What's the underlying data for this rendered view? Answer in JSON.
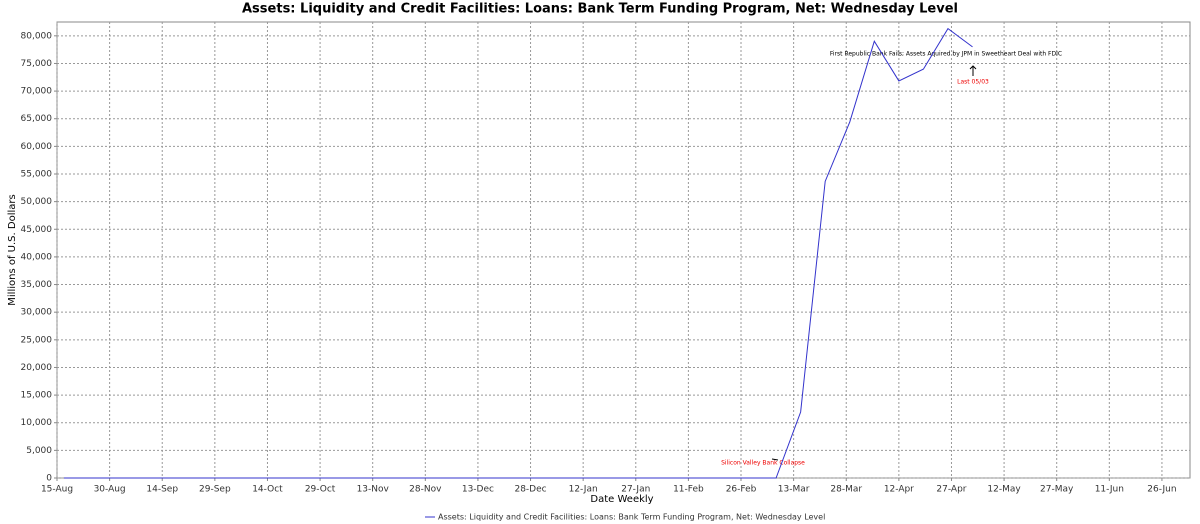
{
  "chart_data": {
    "type": "line",
    "title": "Assets: Liquidity and Credit Facilities: Loans: Bank Term Funding Program, Net: Wednesday Level",
    "x_label": "Date Weekly",
    "y_label": "Millions of U.S. Dollars",
    "x": [
      2,
      9,
      16,
      23,
      30,
      37,
      44,
      51,
      58,
      65,
      72,
      79,
      86,
      93,
      100,
      107,
      114,
      121,
      128,
      135,
      142,
      149,
      156,
      163,
      170,
      177,
      184,
      191,
      198,
      205,
      212,
      219,
      226,
      233,
      240,
      247,
      254,
      261
    ],
    "series": [
      {
        "name": "Assets: Liquidity and Credit Facilities: Loans: Bank Term Funding Program, Net: Wednesday Level",
        "color": "#3333cc",
        "values": [
          0,
          0,
          0,
          0,
          0,
          0,
          0,
          0,
          0,
          0,
          0,
          0,
          0,
          0,
          0,
          0,
          0,
          0,
          0,
          0,
          0,
          0,
          0,
          0,
          0,
          0,
          0,
          0,
          0,
          0,
          11943,
          53669,
          64403,
          79020,
          71837,
          73982,
          81305,
          78000
        ]
      }
    ],
    "xlim": [
      0,
      323
    ],
    "xticks": [
      {
        "value": 0,
        "label": "15-Aug"
      },
      {
        "value": 15,
        "label": "30-Aug"
      },
      {
        "value": 30,
        "label": "14-Sep"
      },
      {
        "value": 45,
        "label": "29-Sep"
      },
      {
        "value": 60,
        "label": "14-Oct"
      },
      {
        "value": 75,
        "label": "29-Oct"
      },
      {
        "value": 90,
        "label": "13-Nov"
      },
      {
        "value": 105,
        "label": "28-Nov"
      },
      {
        "value": 120,
        "label": "13-Dec"
      },
      {
        "value": 135,
        "label": "28-Dec"
      },
      {
        "value": 150,
        "label": "12-Jan"
      },
      {
        "value": 165,
        "label": "27-Jan"
      },
      {
        "value": 180,
        "label": "11-Feb"
      },
      {
        "value": 195,
        "label": "26-Feb"
      },
      {
        "value": 210,
        "label": "13-Mar"
      },
      {
        "value": 225,
        "label": "28-Mar"
      },
      {
        "value": 240,
        "label": "12-Apr"
      },
      {
        "value": 255,
        "label": "27-Apr"
      },
      {
        "value": 270,
        "label": "12-May"
      },
      {
        "value": 285,
        "label": "27-May"
      },
      {
        "value": 300,
        "label": "11-Jun"
      },
      {
        "value": 315,
        "label": "26-Jun"
      }
    ],
    "ylim": [
      0,
      82500
    ],
    "yticks": [
      0,
      {
        "value": 5000,
        "label": "5,000"
      },
      {
        "value": 10000,
        "label": "10,000"
      },
      {
        "value": 15000,
        "label": "15,000"
      },
      {
        "value": 20000,
        "label": "20,000"
      },
      {
        "value": 25000,
        "label": "25,000"
      },
      {
        "value": 30000,
        "label": "30,000"
      },
      {
        "value": 35000,
        "label": "35,000"
      },
      {
        "value": 40000,
        "label": "40,000"
      },
      {
        "value": 45000,
        "label": "45,000"
      },
      {
        "value": 50000,
        "label": "50,000"
      },
      {
        "value": 55000,
        "label": "55,000"
      },
      {
        "value": 60000,
        "label": "60,000"
      },
      {
        "value": 65000,
        "label": "65,000"
      },
      {
        "value": 70000,
        "label": "70,000"
      },
      {
        "value": 75000,
        "label": "75,000"
      },
      {
        "value": 80000,
        "label": "80,000"
      }
    ],
    "grid": true,
    "annotations": [
      "Silicon Valley Bank Collapse",
      "First Republic Bank Fails; Assets Aquired by JPM in Sweetheart Deal with FDIC",
      "Last 05/03"
    ]
  }
}
